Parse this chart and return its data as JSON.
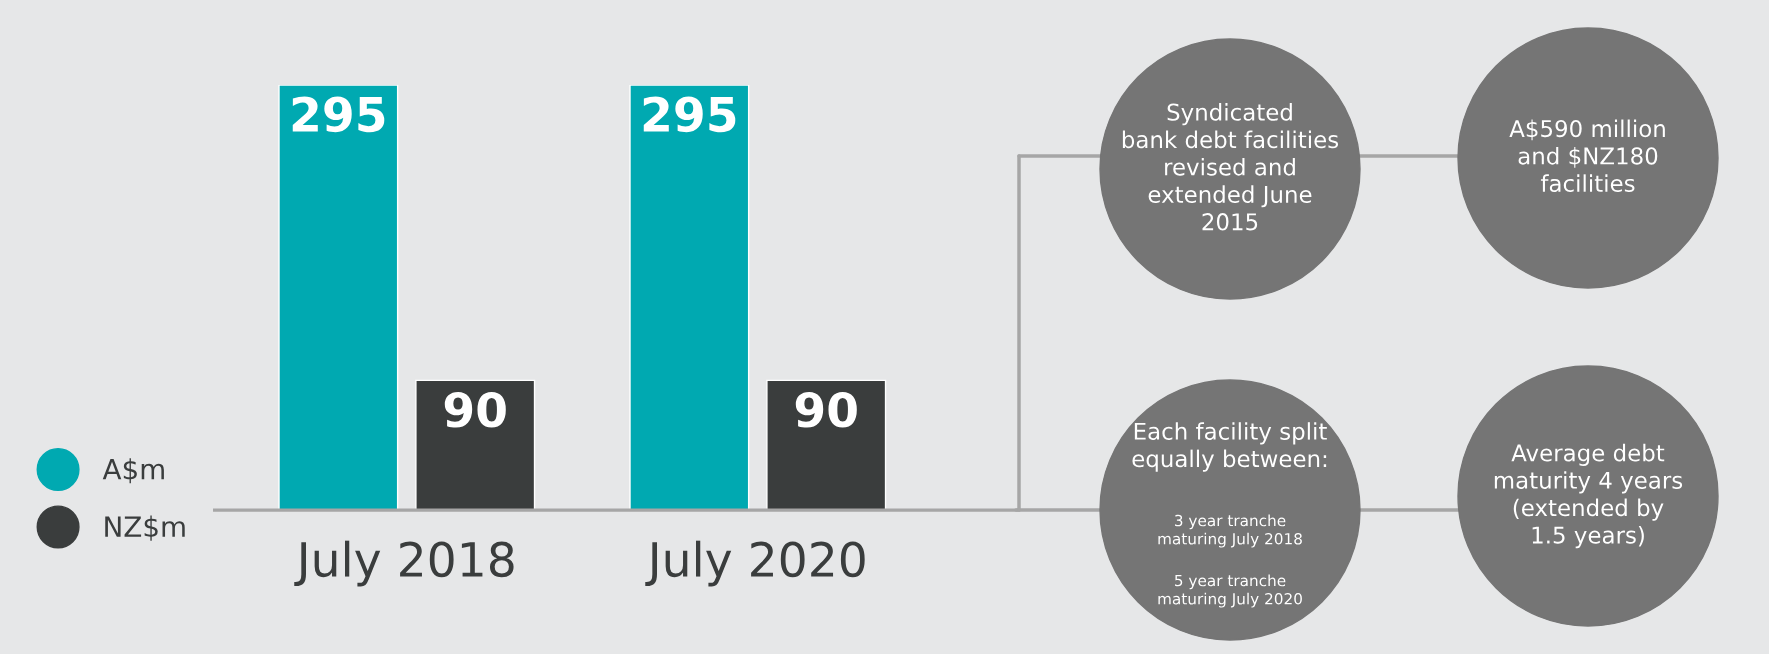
{
  "chart_data": {
    "type": "bar",
    "categories": [
      "July 2018",
      "July 2020"
    ],
    "series": [
      {
        "name": "A$m",
        "color": "#00a9b1",
        "values": [
          295,
          295
        ]
      },
      {
        "name": "NZ$m",
        "color": "#3a3d3d",
        "values": [
          90,
          90
        ]
      }
    ],
    "data_labels": true,
    "legend": "left",
    "annotations": [
      "Syndicated\nbank debt facilities\nrevised and\nextended June\n2015",
      "A$590 million\nand $NZ180\nfacilities",
      "Each facility split\nequally between:",
      "3 year tranche\nmaturing July 2018",
      "5 year tranche\nmaturing July 2020",
      "Average debt\nmaturity 4 years\n(extended by\n1.5 years)"
    ]
  }
}
